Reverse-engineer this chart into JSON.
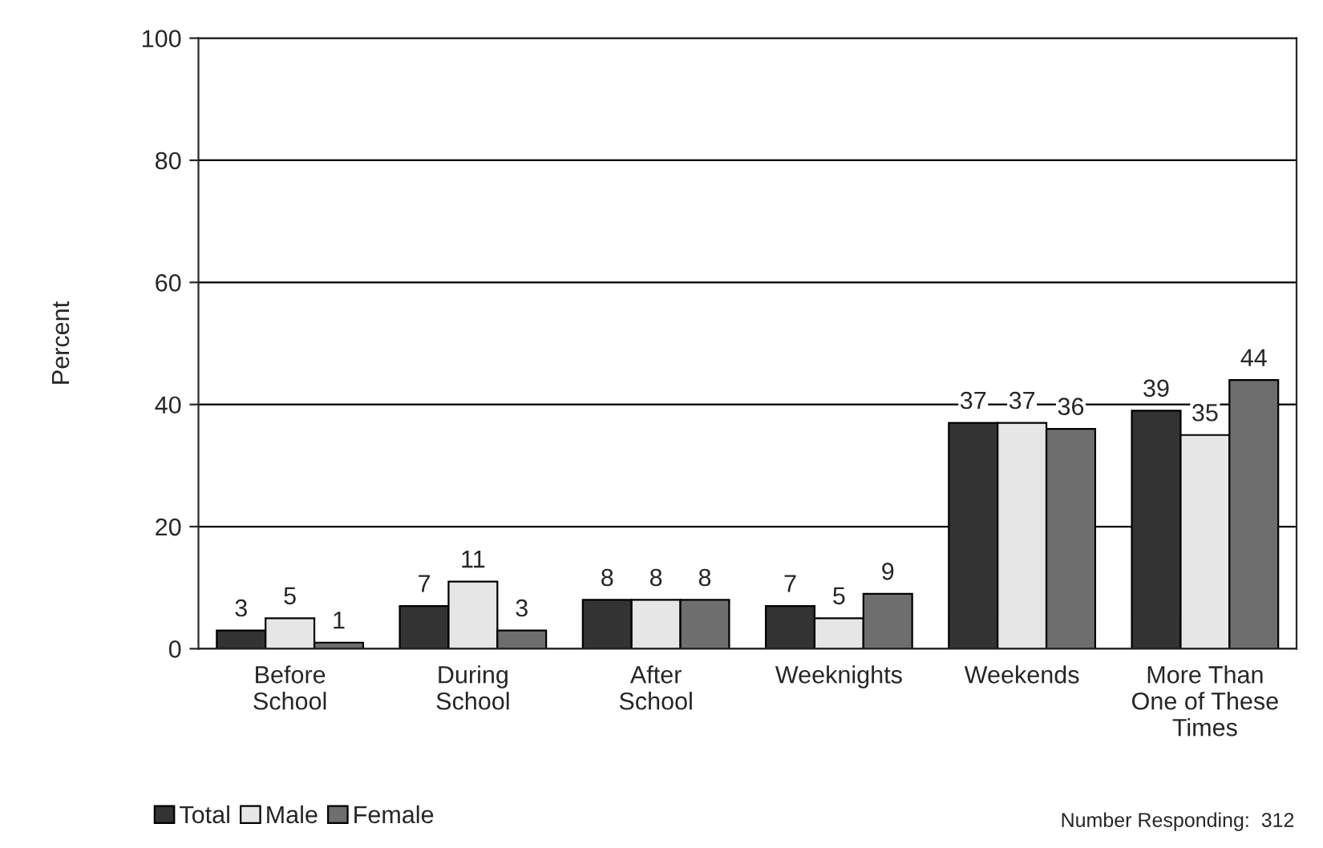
{
  "chart_data": {
    "type": "bar",
    "ylabel": "Percent",
    "categories": [
      "Before\nSchool",
      "During\nSchool",
      "After\nSchool",
      "Weeknights",
      "Weekends",
      "More Than\nOne of These\nTimes"
    ],
    "series": [
      {
        "name": "Total",
        "color": "#333333",
        "values": [
          3,
          7,
          8,
          7,
          37,
          39
        ]
      },
      {
        "name": "Male",
        "color": "#e6e6e6",
        "values": [
          5,
          11,
          8,
          5,
          37,
          35
        ]
      },
      {
        "name": "Female",
        "color": "#6e6e6e",
        "values": [
          1,
          3,
          8,
          9,
          36,
          44
        ]
      }
    ],
    "ylim": [
      0,
      100
    ],
    "yticks": [
      0,
      20,
      40,
      60,
      80,
      100
    ],
    "grid": "y",
    "legend": "bottom left",
    "data_labels": true,
    "annotations": [
      "Number Responding:  312"
    ]
  }
}
